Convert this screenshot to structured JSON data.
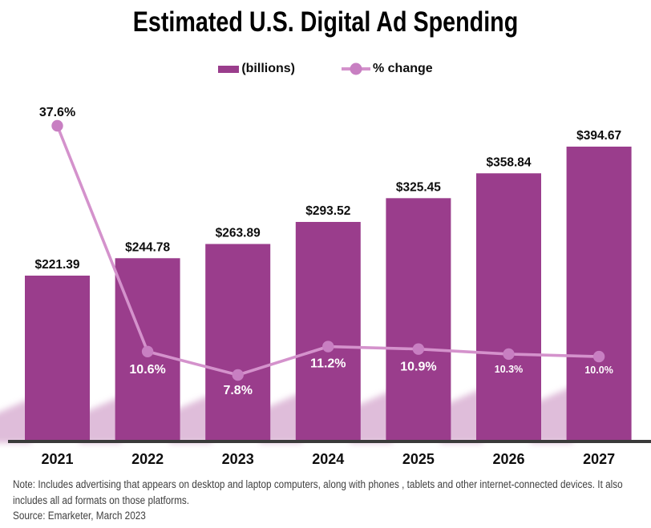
{
  "legend": {
    "bar_label": "(billions)",
    "line_label": "% change"
  },
  "colors": {
    "bar": "#9a3d8c",
    "line": "#d492cc",
    "marker": "#c87fc2",
    "shadow": "#dcb6d6",
    "axis": "#3a3a3a",
    "text": "#0d0d0d",
    "label_on_bar": "#ffffff",
    "note_text": "#3f3f3f"
  },
  "note": {
    "text": "Note: Includes advertising that appears on desktop and laptop computers, along with phones , tablets and other internet-connected devices. It also includes all ad formats on those platforms.",
    "source": "Source: Emarketer, March 2023"
  },
  "chart_data": {
    "type": "combo-bar-line",
    "title": "Estimated U.S. Digital Ad Spending",
    "categories": [
      "2021",
      "2022",
      "2023",
      "2024",
      "2025",
      "2026",
      "2027"
    ],
    "series": [
      {
        "name": "(billions)",
        "type": "bar",
        "values": [
          221.39,
          244.78,
          263.89,
          293.52,
          325.45,
          358.84,
          394.67
        ],
        "labels": [
          "$221.39",
          "$244.78",
          "$263.89",
          "$293.52",
          "$325.45",
          "$358.84",
          "$394.67"
        ],
        "color": "#9a3d8c"
      },
      {
        "name": "% change",
        "type": "line",
        "values": [
          37.6,
          10.6,
          7.8,
          11.2,
          10.9,
          10.3,
          10.0
        ],
        "labels": [
          "37.6%",
          "10.6%",
          "7.8%",
          "11.2%",
          "10.9%",
          "10.3%",
          "10.0%"
        ],
        "color": "#d492cc",
        "marker_color": "#c87fc2"
      }
    ],
    "legend_position": "top",
    "value_axis": "hidden",
    "gridlines": false
  }
}
